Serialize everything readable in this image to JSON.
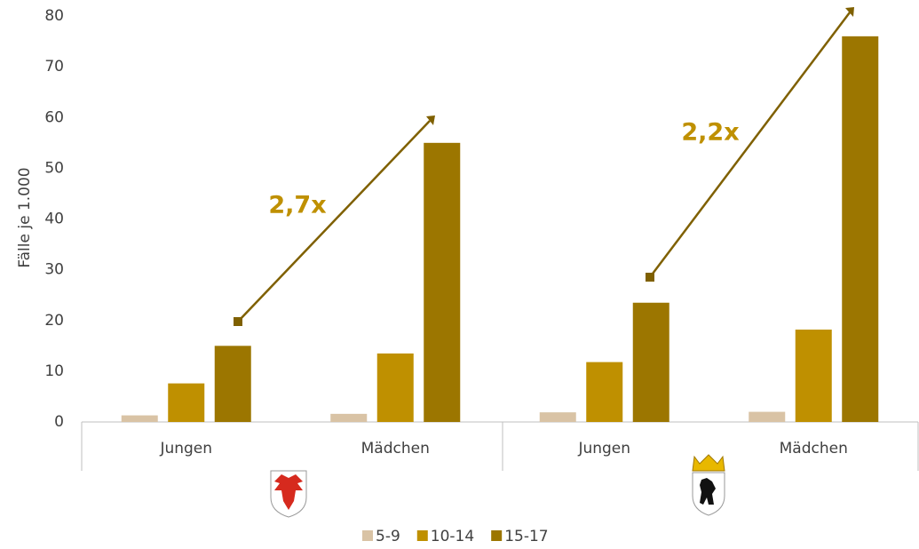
{
  "chart_data": {
    "type": "bar",
    "y_label": "Fälle je 1.000",
    "categories": [
      "Jungen",
      "Mädchen",
      "Jungen",
      "Mädchen"
    ],
    "series": [
      {
        "name": "5-9",
        "color": "#d9c3a5",
        "values": [
          1.3,
          1.6,
          1.9,
          2.0
        ]
      },
      {
        "name": "10-14",
        "color": "#bf9000",
        "values": [
          7.6,
          13.5,
          11.8,
          18.2
        ]
      },
      {
        "name": "15-17",
        "color": "#9c7600",
        "values": [
          15,
          55,
          23.5,
          76
        ]
      }
    ],
    "annotations": [
      "2,7x",
      "2,2x"
    ],
    "ylim": [
      0,
      80
    ],
    "yticks": [
      0,
      10,
      20,
      30,
      40,
      50,
      60,
      70,
      80
    ],
    "grid": false,
    "legend": "bottom"
  }
}
